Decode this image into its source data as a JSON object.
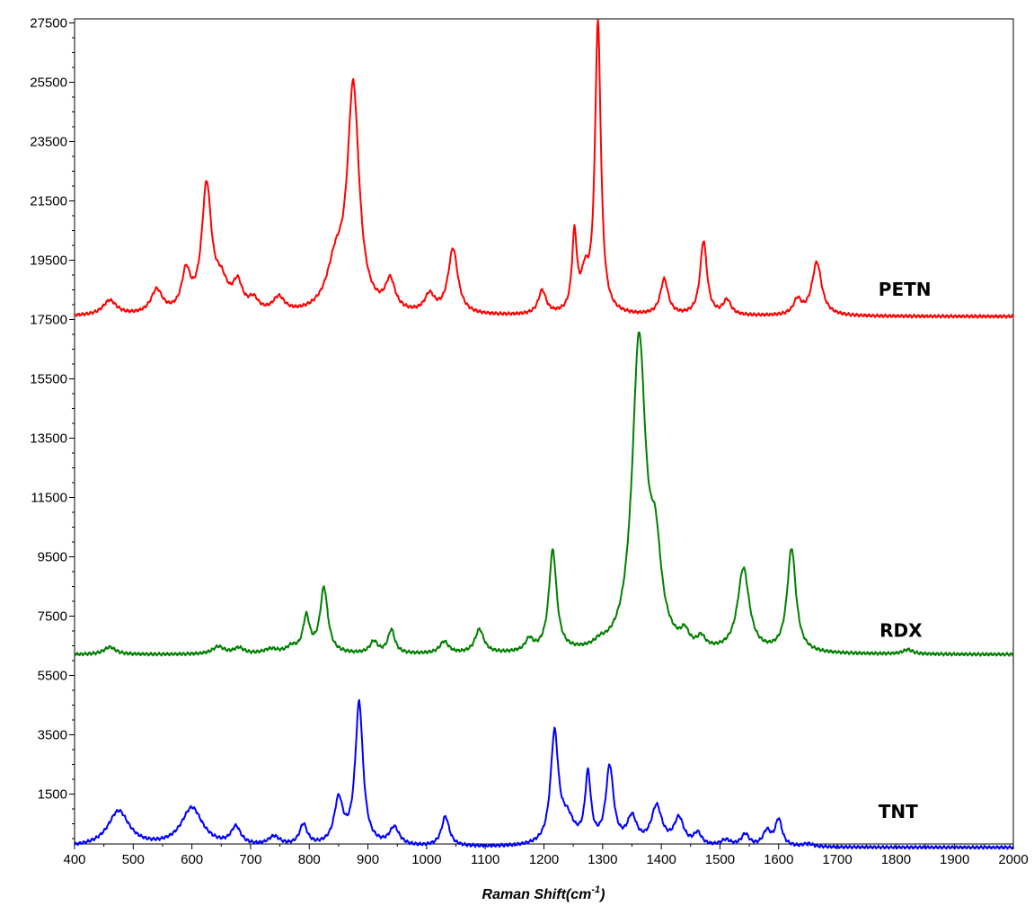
{
  "chart_data": {
    "type": "line",
    "xlabel": "Raman Shift(cm",
    "xlabel_superscript": "-1",
    "xlabel_suffix": ")",
    "ylabel": "",
    "xlim": [
      400,
      2000
    ],
    "ylim": [
      -500,
      27500
    ],
    "x_ticks": [
      400,
      500,
      600,
      700,
      800,
      900,
      1000,
      1100,
      1200,
      1300,
      1400,
      1500,
      1600,
      1700,
      1800,
      1900,
      2000
    ],
    "y_ticks": [
      1500,
      3500,
      5500,
      7500,
      9500,
      11500,
      13500,
      15500,
      17500,
      19500,
      21500,
      23500,
      25500,
      27500
    ],
    "grid": false,
    "legend": "none",
    "series": [
      {
        "name": "PETN",
        "color": "#ff0000",
        "baseline": 17600,
        "peaks": [
          [
            460,
            500,
            14
          ],
          [
            540,
            800,
            12
          ],
          [
            590,
            1300,
            9
          ],
          [
            625,
            4200,
            10
          ],
          [
            650,
            900,
            14
          ],
          [
            678,
            900,
            10
          ],
          [
            705,
            400,
            10
          ],
          [
            748,
            500,
            12
          ],
          [
            845,
            1500,
            18
          ],
          [
            875,
            7500,
            12
          ],
          [
            938,
            1000,
            10
          ],
          [
            1005,
            600,
            10
          ],
          [
            1045,
            2200,
            10
          ],
          [
            1197,
            800,
            8
          ],
          [
            1252,
            2600,
            5
          ],
          [
            1270,
            1100,
            8
          ],
          [
            1292,
            9800,
            6
          ],
          [
            1405,
            1200,
            8
          ],
          [
            1472,
            2500,
            7
          ],
          [
            1512,
            500,
            8
          ],
          [
            1632,
            500,
            8
          ],
          [
            1665,
            1800,
            10
          ]
        ],
        "label_x": 1770,
        "label_value": 18300
      },
      {
        "name": "RDX",
        "color": "#008000",
        "baseline": 6200,
        "peaks": [
          [
            460,
            250,
            12
          ],
          [
            645,
            250,
            12
          ],
          [
            680,
            200,
            10
          ],
          [
            735,
            150,
            15
          ],
          [
            770,
            200,
            10
          ],
          [
            795,
            1200,
            7
          ],
          [
            825,
            2200,
            8
          ],
          [
            910,
            400,
            8
          ],
          [
            940,
            800,
            7
          ],
          [
            1030,
            400,
            9
          ],
          [
            1090,
            800,
            9
          ],
          [
            1175,
            400,
            8
          ],
          [
            1215,
            3400,
            8
          ],
          [
            1295,
            150,
            10
          ],
          [
            1362,
            10400,
            14
          ],
          [
            1390,
            2800,
            12
          ],
          [
            1440,
            450,
            8
          ],
          [
            1468,
            350,
            8
          ],
          [
            1540,
            2800,
            12
          ],
          [
            1622,
            3500,
            9
          ],
          [
            1820,
            150,
            10
          ]
        ],
        "label_x": 1772,
        "label_value": 6800
      },
      {
        "name": "TNT",
        "color": "#0000ff",
        "baseline": -300,
        "peaks": [
          [
            475,
            1200,
            22
          ],
          [
            600,
            1300,
            22
          ],
          [
            675,
            600,
            10
          ],
          [
            740,
            300,
            12
          ],
          [
            790,
            700,
            8
          ],
          [
            850,
            1500,
            9
          ],
          [
            885,
            4800,
            8
          ],
          [
            945,
            600,
            10
          ],
          [
            1032,
            1000,
            8
          ],
          [
            1218,
            3700,
            8
          ],
          [
            1240,
            800,
            14
          ],
          [
            1275,
            2300,
            6
          ],
          [
            1312,
            2600,
            8
          ],
          [
            1350,
            900,
            10
          ],
          [
            1392,
            1300,
            11
          ],
          [
            1430,
            900,
            10
          ],
          [
            1462,
            400,
            8
          ],
          [
            1510,
            200,
            10
          ],
          [
            1543,
            400,
            8
          ],
          [
            1580,
            500,
            8
          ],
          [
            1600,
            900,
            7
          ],
          [
            1650,
            100,
            10
          ]
        ],
        "label_x": 1770,
        "label_value": 700
      }
    ]
  }
}
